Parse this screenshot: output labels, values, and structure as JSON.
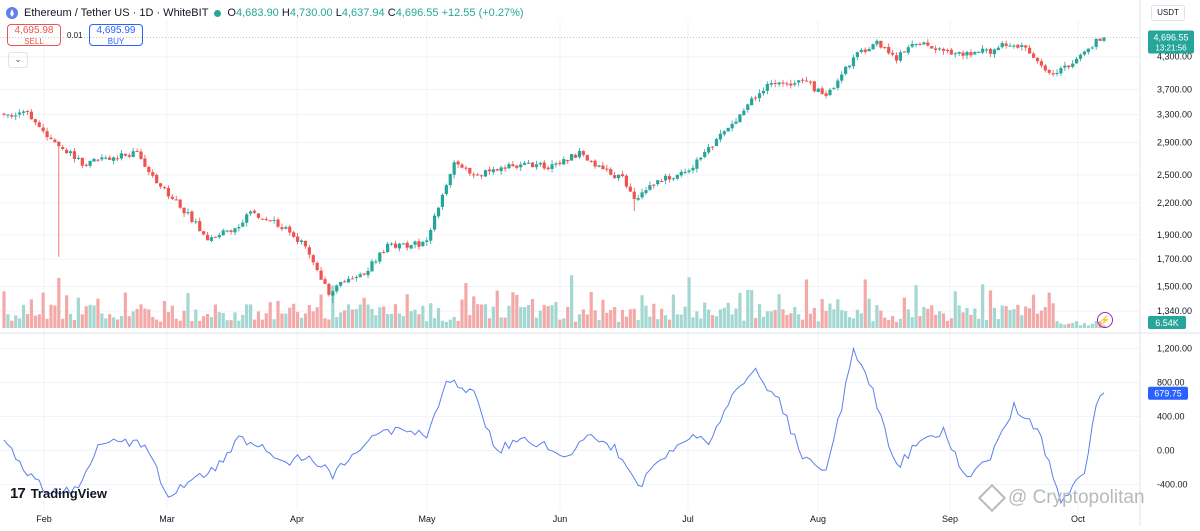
{
  "header": {
    "title": "Ethereum / Tether US · 1D · WhiteBIT",
    "open_label": "O",
    "open": "4,683.90",
    "high_label": "H",
    "high": "4,730.00",
    "low_label": "L",
    "low": "4,637.94",
    "close_label": "C",
    "close": "4,696.55",
    "change": "+12.55 (+0.27%)"
  },
  "trade": {
    "sell_price": "4,695.98",
    "sell_label": "SELL",
    "spread": "0.01",
    "buy_price": "4,695.99",
    "buy_label": "BUY"
  },
  "currency": "USDT",
  "brand": "TradingView",
  "watermark": "@ Cryptopolitan",
  "price_tag": {
    "value": "4,696.55",
    "countdown": "13:21:56"
  },
  "volume_tag": "6.54K",
  "osc_tag": "679.75",
  "colors": {
    "up": "#26a69a",
    "down": "#ef5350",
    "vol_up": "#a3d7d1",
    "vol_down": "#f3a9a8",
    "osc_line": "#5b7ff0",
    "tag_blue": "#2962ff",
    "tag_green": "#26a69a",
    "axis_text": "#131722",
    "grid": "#f0f3fa"
  },
  "chart_data": [
    {
      "type": "candlestick",
      "title": "Ethereum / Tether US · 1D · WhiteBIT",
      "x_labels": [
        "Feb",
        "Mar",
        "Apr",
        "May",
        "Jun",
        "Jul",
        "Aug",
        "Sep",
        "Oct"
      ],
      "y_ticks": [
        "4,300.00",
        "3,700.00",
        "3,300.00",
        "2,900.00",
        "2,500.00",
        "2,200.00",
        "1,900.00",
        "1,700.00",
        "1,500.00",
        "1,340.00"
      ],
      "y_tick_values": [
        4300,
        3700,
        3300,
        2900,
        2500,
        2200,
        1900,
        1700,
        1500,
        1340
      ],
      "scale": "log",
      "ylim": [
        1240,
        4950
      ],
      "last_price": 4696.55,
      "close_anchors": [
        [
          0,
          3290
        ],
        [
          6,
          3340
        ],
        [
          12,
          2950
        ],
        [
          20,
          2640
        ],
        [
          28,
          2700
        ],
        [
          34,
          2780
        ],
        [
          38,
          2480
        ],
        [
          46,
          2120
        ],
        [
          52,
          1880
        ],
        [
          58,
          1930
        ],
        [
          63,
          2100
        ],
        [
          70,
          1990
        ],
        [
          76,
          1840
        ],
        [
          80,
          1620
        ],
        [
          83,
          1450
        ],
        [
          86,
          1520
        ],
        [
          92,
          1590
        ],
        [
          98,
          1800
        ],
        [
          108,
          1830
        ],
        [
          110,
          2060
        ],
        [
          115,
          2630
        ],
        [
          121,
          2500
        ],
        [
          131,
          2620
        ],
        [
          140,
          2600
        ],
        [
          147,
          2770
        ],
        [
          152,
          2580
        ],
        [
          158,
          2460
        ],
        [
          161,
          2220
        ],
        [
          167,
          2440
        ],
        [
          175,
          2560
        ],
        [
          185,
          3100
        ],
        [
          195,
          3770
        ],
        [
          205,
          3840
        ],
        [
          210,
          3550
        ],
        [
          217,
          4280
        ],
        [
          223,
          4570
        ],
        [
          228,
          4280
        ],
        [
          232,
          4620
        ],
        [
          240,
          4390
        ],
        [
          246,
          4360
        ],
        [
          252,
          4420
        ],
        [
          256,
          4560
        ],
        [
          262,
          4420
        ],
        [
          266,
          4080
        ],
        [
          268,
          3980
        ],
        [
          273,
          4170
        ],
        [
          276,
          4400
        ],
        [
          279,
          4600
        ],
        [
          281,
          4696.55
        ]
      ]
    },
    {
      "type": "bar",
      "title": "Volume",
      "last_value": "6.54K",
      "spike_days": [
        14,
        84,
        118,
        145,
        175,
        205,
        220,
        233,
        250
      ]
    },
    {
      "type": "line",
      "title": "Oscillator",
      "y_ticks": [
        "1,200.00",
        "800.00",
        "400.00",
        "0.00",
        "-400.00"
      ],
      "y_tick_values": [
        1200,
        800,
        400,
        0,
        -400
      ],
      "ylim": [
        -700,
        1300
      ],
      "last_value": 679.75,
      "anchors": [
        [
          0,
          100
        ],
        [
          6,
          -280
        ],
        [
          12,
          -500
        ],
        [
          18,
          -480
        ],
        [
          24,
          50
        ],
        [
          30,
          120
        ],
        [
          36,
          50
        ],
        [
          42,
          -520
        ],
        [
          48,
          -360
        ],
        [
          54,
          -220
        ],
        [
          60,
          150
        ],
        [
          66,
          60
        ],
        [
          72,
          -150
        ],
        [
          78,
          -60
        ],
        [
          84,
          -280
        ],
        [
          90,
          0
        ],
        [
          96,
          180
        ],
        [
          102,
          260
        ],
        [
          108,
          150
        ],
        [
          113,
          820
        ],
        [
          120,
          660
        ],
        [
          126,
          0
        ],
        [
          132,
          150
        ],
        [
          138,
          60
        ],
        [
          144,
          -60
        ],
        [
          150,
          180
        ],
        [
          156,
          30
        ],
        [
          162,
          -430
        ],
        [
          168,
          -120
        ],
        [
          174,
          160
        ],
        [
          180,
          90
        ],
        [
          186,
          650
        ],
        [
          192,
          930
        ],
        [
          198,
          580
        ],
        [
          204,
          -80
        ],
        [
          210,
          -200
        ],
        [
          214,
          500
        ],
        [
          217,
          1220
        ],
        [
          222,
          700
        ],
        [
          228,
          -200
        ],
        [
          234,
          120
        ],
        [
          240,
          220
        ],
        [
          246,
          -320
        ],
        [
          252,
          -60
        ],
        [
          258,
          520
        ],
        [
          264,
          250
        ],
        [
          270,
          -600
        ],
        [
          276,
          -260
        ],
        [
          279,
          520
        ],
        [
          281,
          680
        ]
      ]
    }
  ]
}
